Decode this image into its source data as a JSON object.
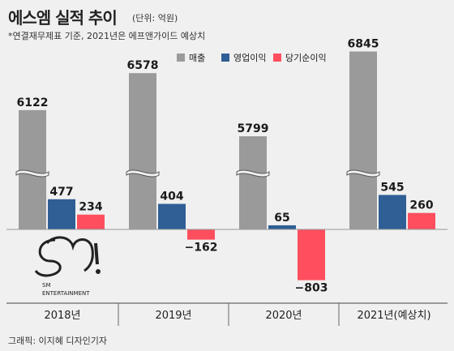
{
  "header": {
    "title": "에스엠 실적 추이",
    "unit": "(단위: 억원)",
    "subtitle": "*연결재무제표 기준, 2021년은 에프앤가이드 예상치"
  },
  "logo": {
    "line1": "SM",
    "line2": "ENTERTAINMENT"
  },
  "credit": "그래픽: 이지혜 디자인기자",
  "colors": {
    "매출": "#9a9a9a",
    "영업이익": "#2f5f95",
    "당기순이익": "#ff4f5e",
    "background": "#f0f0f0"
  },
  "chart_data": {
    "type": "bar",
    "categories": [
      "2018년",
      "2019년",
      "2020년",
      "2021년(예상치)"
    ],
    "series": [
      {
        "name": "매출",
        "values": [
          6122,
          6578,
          5799,
          6845
        ]
      },
      {
        "name": "영업이익",
        "values": [
          477,
          404,
          65,
          545
        ]
      },
      {
        "name": "당기순이익",
        "values": [
          234,
          -162,
          -803,
          260
        ]
      }
    ],
    "axis_break": true,
    "legend_position": "top-right",
    "grid": false
  }
}
